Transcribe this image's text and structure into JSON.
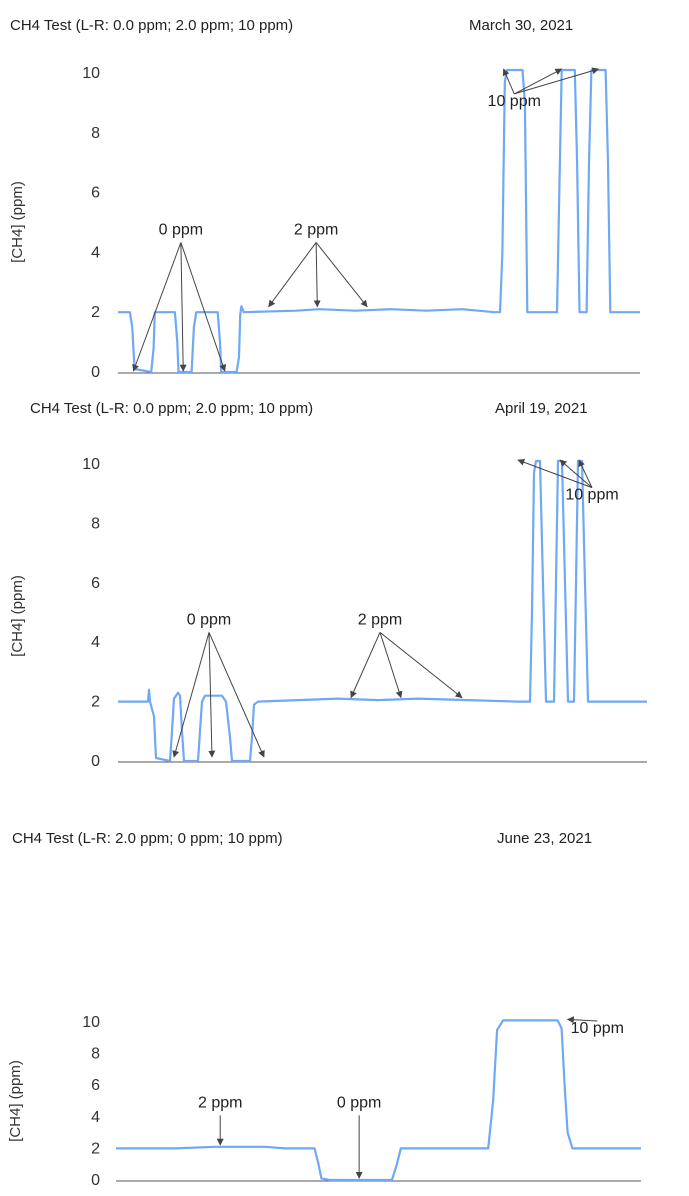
{
  "chart_data": [
    {
      "type": "line",
      "title": "CH4 Test (L-R: 0.0 ppm; 2.0 ppm; 10 ppm)",
      "date": "March 30, 2021",
      "ylabel": "[CH4] (ppm)",
      "ylim": [
        0,
        10
      ],
      "yticks": [
        0,
        2,
        4,
        6,
        8,
        10
      ],
      "grid": false,
      "series": [
        {
          "color": "#6fa8f5",
          "points": [
            [
              0,
              2.0
            ],
            [
              10,
              2.0
            ],
            [
              12,
              1.5
            ],
            [
              14,
              0.1
            ],
            [
              28,
              0.0
            ],
            [
              30,
              0.8
            ],
            [
              31,
              2.0
            ],
            [
              48,
              2.0
            ],
            [
              50,
              1.0
            ],
            [
              51,
              0.0
            ],
            [
              62,
              0.0
            ],
            [
              64,
              1.5
            ],
            [
              66,
              2.0
            ],
            [
              84,
              2.0
            ],
            [
              86,
              1.0
            ],
            [
              87,
              0.0
            ],
            [
              100,
              0.0
            ],
            [
              102,
              0.5
            ],
            [
              103,
              1.9
            ],
            [
              104,
              2.2
            ],
            [
              106,
              2.0
            ],
            [
              150,
              2.05
            ],
            [
              170,
              2.1
            ],
            [
              200,
              2.05
            ],
            [
              230,
              2.1
            ],
            [
              260,
              2.05
            ],
            [
              290,
              2.1
            ],
            [
              317,
              2.0
            ],
            [
              322,
              2.0
            ],
            [
              324,
              4.0
            ],
            [
              326,
              9.7
            ],
            [
              328,
              10.1
            ],
            [
              341,
              10.1
            ],
            [
              343,
              9.0
            ],
            [
              345,
              2.0
            ],
            [
              370,
              2.0
            ],
            [
              372,
              6.0
            ],
            [
              374,
              10.1
            ],
            [
              385,
              10.1
            ],
            [
              387,
              7.0
            ],
            [
              389,
              2.0
            ],
            [
              395,
              2.0
            ],
            [
              397,
              7.0
            ],
            [
              399,
              10.1
            ],
            [
              411,
              10.1
            ],
            [
              413,
              7.0
            ],
            [
              415,
              2.0
            ],
            [
              440,
              2.0
            ]
          ]
        }
      ],
      "annotations": [
        {
          "text": "0 ppm",
          "x": 53,
          "y": 4.6,
          "targets": [
            [
              13,
              0.0
            ],
            [
              55,
              0.0
            ],
            [
              90,
              0.0
            ]
          ]
        },
        {
          "text": "2 ppm",
          "x": 167,
          "y": 4.6,
          "targets": [
            [
              127,
              2.15
            ],
            [
              168,
              2.15
            ],
            [
              210,
              2.15
            ]
          ]
        },
        {
          "text": "10 ppm",
          "x": 334,
          "y": 8.9,
          "targets": [
            [
              325,
              10.1
            ],
            [
              374,
              10.1
            ],
            [
              405,
              10.1
            ]
          ]
        }
      ]
    },
    {
      "type": "line",
      "title": "CH4 Test (L-R: 0.0 ppm; 2.0 ppm; 10 ppm)",
      "date": "April 19, 2021",
      "ylabel": "[CH4] (ppm)",
      "ylim": [
        0,
        10
      ],
      "yticks": [
        0,
        2,
        4,
        6,
        8,
        10
      ],
      "grid": false,
      "series": [
        {
          "color": "#6fa8f5",
          "points": [
            [
              0,
              2.0
            ],
            [
              30,
              2.0
            ],
            [
              31,
              2.4
            ],
            [
              32,
              2.0
            ],
            [
              36,
              1.5
            ],
            [
              38,
              0.1
            ],
            [
              52,
              0.0
            ],
            [
              54,
              1.0
            ],
            [
              56,
              2.1
            ],
            [
              60,
              2.3
            ],
            [
              62,
              2.2
            ],
            [
              64,
              1.0
            ],
            [
              66,
              0.0
            ],
            [
              80,
              0.0
            ],
            [
              82,
              1.0
            ],
            [
              84,
              2.0
            ],
            [
              87,
              2.2
            ],
            [
              104,
              2.2
            ],
            [
              108,
              2.0
            ],
            [
              112,
              0.8
            ],
            [
              114,
              0.0
            ],
            [
              132,
              0.0
            ],
            [
              134,
              0.8
            ],
            [
              136,
              1.9
            ],
            [
              140,
              2.0
            ],
            [
              180,
              2.05
            ],
            [
              220,
              2.1
            ],
            [
              260,
              2.05
            ],
            [
              300,
              2.1
            ],
            [
              350,
              2.05
            ],
            [
              400,
              2.0
            ],
            [
              412,
              2.0
            ],
            [
              414,
              5.0
            ],
            [
              416,
              9.7
            ],
            [
              418,
              10.1
            ],
            [
              422,
              10.1
            ],
            [
              425,
              6.0
            ],
            [
              428,
              2.0
            ],
            [
              436,
              2.0
            ],
            [
              438,
              6.0
            ],
            [
              440,
              10.1
            ],
            [
              444,
              10.1
            ],
            [
              447,
              6.0
            ],
            [
              450,
              2.0
            ],
            [
              456,
              2.0
            ],
            [
              458,
              6.0
            ],
            [
              460,
              10.1
            ],
            [
              464,
              10.1
            ],
            [
              467,
              6.0
            ],
            [
              470,
              2.0
            ],
            [
              529,
              2.0
            ]
          ]
        }
      ],
      "annotations": [
        {
          "text": "0 ppm",
          "x": 91,
          "y": 4.6,
          "targets": [
            [
              56,
              0.1
            ],
            [
              94,
              0.1
            ],
            [
              146,
              0.1
            ]
          ]
        },
        {
          "text": "2 ppm",
          "x": 262,
          "y": 4.6,
          "targets": [
            [
              233,
              2.1
            ],
            [
              283,
              2.1
            ],
            [
              344,
              2.1
            ]
          ]
        },
        {
          "text": "10 ppm",
          "x": 474,
          "y": 8.8,
          "targets": [
            [
              400,
              10.1
            ],
            [
              442,
              10.1
            ],
            [
              461,
              10.1
            ]
          ]
        }
      ]
    },
    {
      "type": "line",
      "title": "CH4 Test (L-R: 2.0 ppm; 0 ppm; 10 ppm)",
      "date": "June 23, 2021",
      "ylabel": "[CH4] (ppm)",
      "ylim": [
        0,
        10
      ],
      "yticks": [
        0,
        2,
        4,
        6,
        8,
        10
      ],
      "grid": false,
      "series": [
        {
          "color": "#6fa8f5",
          "points": [
            [
              0,
              2.0
            ],
            [
              60,
              2.0
            ],
            [
              100,
              2.1
            ],
            [
              150,
              2.1
            ],
            [
              170,
              2.0
            ],
            [
              200,
              2.0
            ],
            [
              204,
              1.0
            ],
            [
              207,
              0.1
            ],
            [
              215,
              0.0
            ],
            [
              278,
              0.0
            ],
            [
              283,
              1.0
            ],
            [
              287,
              2.0
            ],
            [
              370,
              2.0
            ],
            [
              375,
              2.0
            ],
            [
              380,
              5.0
            ],
            [
              384,
              9.5
            ],
            [
              390,
              10.1
            ],
            [
              445,
              10.1
            ],
            [
              449,
              9.6
            ],
            [
              452,
              6.0
            ],
            [
              455,
              3.0
            ],
            [
              460,
              2.0
            ],
            [
              529,
              2.0
            ]
          ]
        }
      ],
      "annotations": [
        {
          "text": "2 ppm",
          "x": 105,
          "y": 4.6,
          "targets": [
            [
              105,
              2.15
            ]
          ]
        },
        {
          "text": "0 ppm",
          "x": 245,
          "y": 4.6,
          "targets": [
            [
              245,
              0.05
            ]
          ]
        },
        {
          "text": "10 ppm",
          "x": 485,
          "y": 9.3,
          "targets": [
            [
              455,
              10.1
            ]
          ]
        }
      ]
    }
  ]
}
